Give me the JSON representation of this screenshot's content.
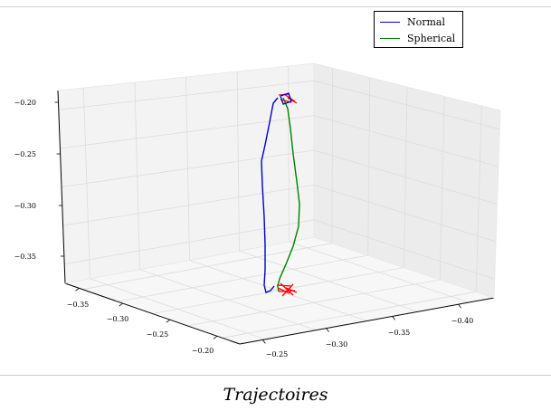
{
  "caption": "Trajectoires",
  "chart_data": {
    "type": "line3d",
    "title": "",
    "legend": {
      "placement": "top-right",
      "entries": [
        {
          "name": "Normal",
          "color": "#0000cc"
        },
        {
          "name": "Spherical",
          "color": "#008000"
        }
      ]
    },
    "grid": true,
    "axes": {
      "x": {
        "ticks": [
          -0.25,
          -0.3,
          -0.35,
          -0.4
        ],
        "labels": [
          "−0.25",
          "−0.30",
          "−0.35",
          "−0.40"
        ]
      },
      "y": {
        "ticks": [
          -0.35,
          -0.3,
          -0.25,
          -0.2
        ],
        "labels": [
          "−0.35",
          "−0.30",
          "−0.25",
          "−0.20"
        ]
      },
      "z": {
        "ticks": [
          -0.35,
          -0.3,
          -0.25,
          -0.2
        ],
        "labels": [
          "−0.35",
          "−0.30",
          "−0.25",
          "−0.20"
        ]
      }
    },
    "series": [
      {
        "name": "Normal",
        "color": "#0000cc",
        "points_approx": [
          [
            -0.3,
            -0.3,
            -0.2
          ],
          [
            -0.29,
            -0.31,
            -0.27
          ],
          [
            -0.29,
            -0.31,
            -0.33
          ],
          [
            -0.3,
            -0.3,
            -0.38
          ]
        ]
      },
      {
        "name": "Spherical",
        "color": "#008000",
        "points_approx": [
          [
            -0.31,
            -0.3,
            -0.2
          ],
          [
            -0.32,
            -0.29,
            -0.27
          ],
          [
            -0.32,
            -0.29,
            -0.32
          ],
          [
            -0.31,
            -0.3,
            -0.38
          ]
        ]
      }
    ],
    "markers": {
      "color": "#ff0000",
      "description": "red frame glyphs at trajectory start and end"
    }
  }
}
